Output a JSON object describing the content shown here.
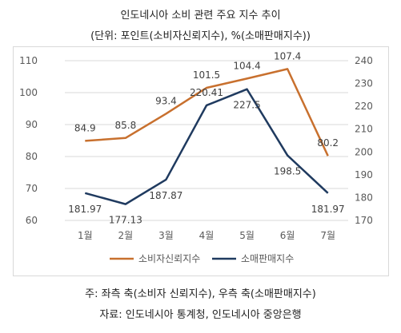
{
  "header": {
    "title": "인도네시아 소비 관련 주요 지수 추이",
    "subtitle": "(단위: 포인트(소비자신뢰지수), %(소매판매지수))"
  },
  "footer": {
    "note": "주: 좌측 축(소비자 신뢰지수), 우측 축(소매판매지수)",
    "source": "자료: 인도네시아 통계청, 인도네시아 중앙은행"
  },
  "colors": {
    "consumer": "#C8702E",
    "retail": "#1F3A5F",
    "grid": "#d9d9d9",
    "text": "#595959"
  },
  "chart_data": {
    "type": "line",
    "title": "인도네시아 소비 관련 주요 지수 추이",
    "categories": [
      "1월",
      "2월",
      "3월",
      "4월",
      "5월",
      "6월",
      "7월"
    ],
    "series": [
      {
        "name": "소비자신뢰지수",
        "axis": "left",
        "values": [
          84.9,
          85.8,
          93.4,
          101.5,
          104.4,
          107.4,
          80.2
        ],
        "labels": [
          "84.9",
          "85.8",
          "93.4",
          "101.5",
          "104.4",
          "107.4",
          "80.2"
        ]
      },
      {
        "name": "소매판매지수",
        "axis": "right",
        "values": [
          181.97,
          177.13,
          187.87,
          220.41,
          227.5,
          198.5,
          181.97
        ],
        "labels": [
          "181.97",
          "177.13",
          "187.87",
          "220.41",
          "227.5",
          "198.5",
          "181.97"
        ]
      }
    ],
    "y_left": {
      "min": 60,
      "max": 110,
      "ticks": [
        "110",
        "100",
        "90",
        "80",
        "70",
        "60"
      ]
    },
    "y_right": {
      "min": 170,
      "max": 240,
      "ticks": [
        "240",
        "230",
        "220",
        "210",
        "200",
        "190",
        "180",
        "170"
      ]
    },
    "grid": true,
    "legend_position": "bottom"
  }
}
